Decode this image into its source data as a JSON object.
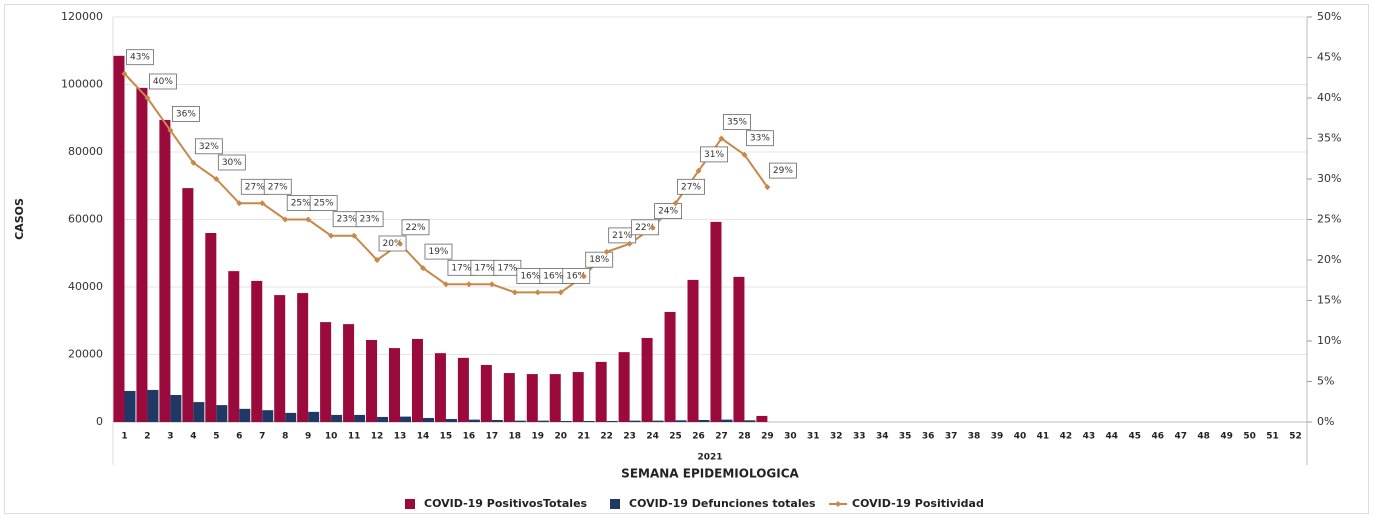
{
  "chart_data": {
    "type": "bar_line",
    "ylabel": "CASOS",
    "xlabel": "SEMANA EPIDEMIOLOGICA",
    "x_group_label": "2021",
    "categories": [
      1,
      2,
      3,
      4,
      5,
      6,
      7,
      8,
      9,
      10,
      11,
      12,
      13,
      14,
      15,
      16,
      17,
      18,
      19,
      20,
      21,
      22,
      23,
      24,
      25,
      26,
      27,
      28,
      29,
      30,
      31,
      32,
      33,
      34,
      35,
      36,
      37,
      38,
      39,
      40,
      41,
      42,
      43,
      44,
      45,
      46,
      47,
      48,
      49,
      50,
      51,
      52
    ],
    "ylim": [
      0,
      120000
    ],
    "yticks": [
      0,
      20000,
      40000,
      60000,
      80000,
      100000,
      120000
    ],
    "y2lim": [
      0,
      50
    ],
    "y2ticks": [
      {
        "value": 0,
        "label": "0%"
      },
      {
        "value": 5,
        "label": "5%"
      },
      {
        "value": 10,
        "label": "10%"
      },
      {
        "value": 15,
        "label": "15%"
      },
      {
        "value": 20,
        "label": "20%"
      },
      {
        "value": 25,
        "label": "25%"
      },
      {
        "value": 30,
        "label": "30%"
      },
      {
        "value": 35,
        "label": "35%"
      },
      {
        "value": 40,
        "label": "40%"
      },
      {
        "value": 45,
        "label": "45%"
      },
      {
        "value": 50,
        "label": "50%"
      }
    ],
    "grid": true,
    "series": [
      {
        "name": "COVID-19 PositivosTotales",
        "color": "#9b0a3c",
        "kind": "bar",
        "values": [
          108500,
          99000,
          89500,
          69300,
          56000,
          44700,
          41800,
          37600,
          38200,
          29600,
          29000,
          24300,
          21900,
          24600,
          20400,
          19000,
          16900,
          14500,
          14200,
          14200,
          14800,
          17800,
          20700,
          24900,
          32600,
          42100,
          59300,
          43000,
          1800,
          null,
          null,
          null,
          null,
          null,
          null,
          null,
          null,
          null,
          null,
          null,
          null,
          null,
          null,
          null,
          null,
          null,
          null,
          null,
          null,
          null,
          null,
          null
        ]
      },
      {
        "name": "COVID-19 Defunciones totales",
        "color": "#1f3864",
        "kind": "bar",
        "values": [
          9200,
          9500,
          8000,
          5900,
          5000,
          3900,
          3500,
          2700,
          3000,
          2100,
          2100,
          1500,
          1600,
          1200,
          900,
          700,
          600,
          400,
          400,
          300,
          300,
          300,
          400,
          400,
          500,
          600,
          700,
          500,
          null,
          null,
          null,
          null,
          null,
          null,
          null,
          null,
          null,
          null,
          null,
          null,
          null,
          null,
          null,
          null,
          null,
          null,
          null,
          null,
          null,
          null,
          null,
          null
        ]
      },
      {
        "name": "COVID-19 Positividad",
        "color": "#c8884a",
        "kind": "line",
        "axis": "y2",
        "values": [
          43,
          40,
          36,
          32,
          30,
          27,
          27,
          25,
          25,
          23,
          23,
          20,
          22,
          19,
          17,
          17,
          17,
          16,
          16,
          16,
          18,
          21,
          22,
          24,
          27,
          31,
          35,
          33,
          29,
          null,
          null,
          null,
          null,
          null,
          null,
          null,
          null,
          null,
          null,
          null,
          null,
          null,
          null,
          null,
          null,
          null,
          null,
          null,
          null,
          null,
          null,
          null
        ],
        "value_labels": [
          "43%",
          "40%",
          "36%",
          "32%",
          "30%",
          "27%",
          "27%",
          "25%",
          "25%",
          "23%",
          "23%",
          "20%",
          "22%",
          "19%",
          "17%",
          "17%",
          "17%",
          "16%",
          "16%",
          "16%",
          "18%",
          "21%",
          "22%",
          "24%",
          "27%",
          "31%",
          "35%",
          "33%",
          "29%",
          null,
          null,
          null,
          null,
          null,
          null,
          null,
          null,
          null,
          null,
          null,
          null,
          null,
          null,
          null,
          null,
          null,
          null,
          null,
          null,
          null,
          null,
          null
        ]
      }
    ]
  }
}
